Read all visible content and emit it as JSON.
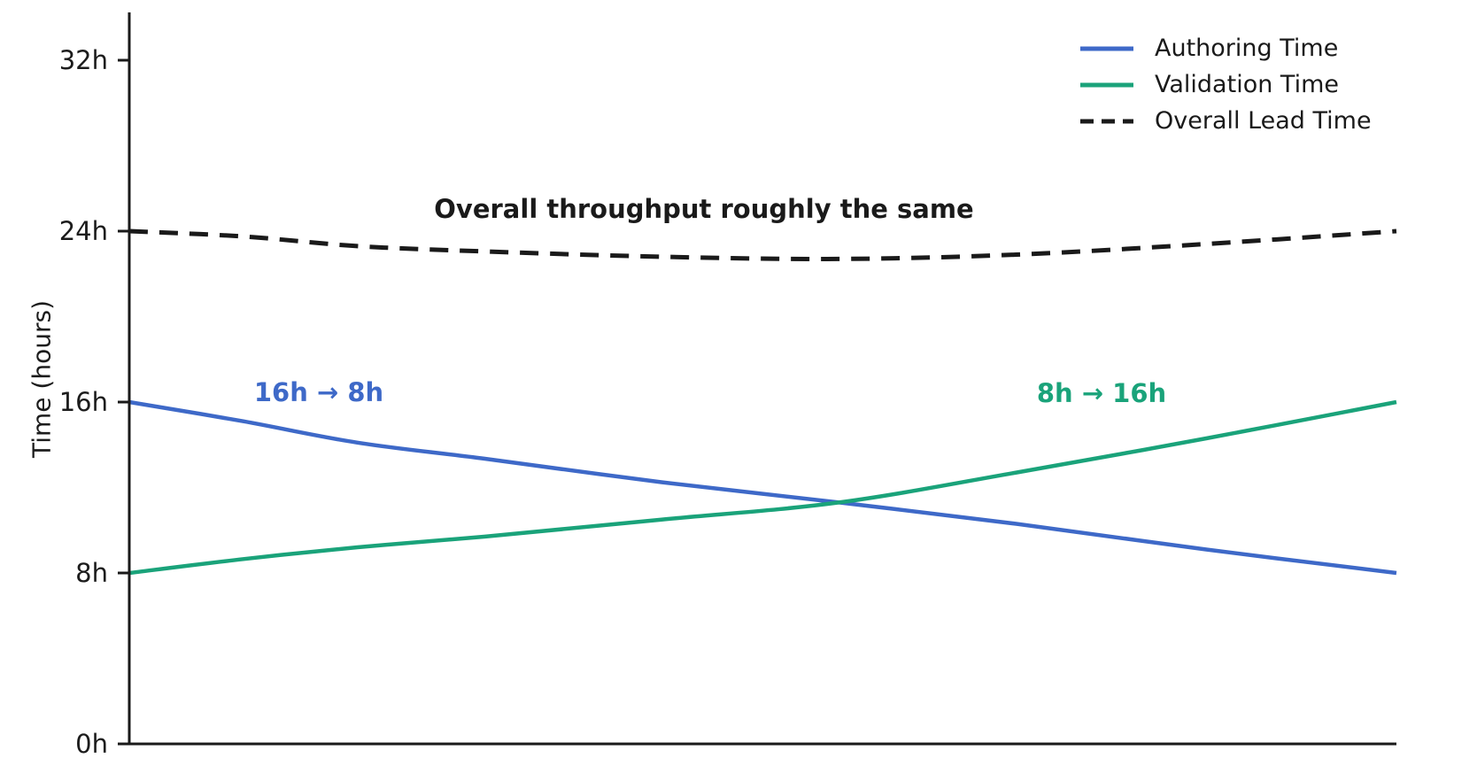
{
  "chart_data": {
    "type": "line",
    "title": "",
    "xlabel": "",
    "ylabel": "Time (hours)",
    "ylim": [
      0,
      34
    ],
    "grid": false,
    "legend_position": "upper right",
    "x_axis_tick_labels": "none",
    "yticks": [
      {
        "value": 0,
        "label": "0h"
      },
      {
        "value": 8,
        "label": "8h"
      },
      {
        "value": 16,
        "label": "16h"
      },
      {
        "value": 24,
        "label": "24h"
      },
      {
        "value": 32,
        "label": "32h"
      }
    ],
    "x": [
      0,
      0.09,
      0.18,
      0.28,
      0.42,
      0.56,
      0.7,
      0.85,
      1
    ],
    "series": [
      {
        "name": "Authoring Time",
        "style": "solid",
        "color": "#3e69c8",
        "values": [
          16,
          15.1,
          14.1,
          13.35,
          12.25,
          11.3,
          10.3,
          9.1,
          8
        ]
      },
      {
        "name": "Validation Time",
        "style": "solid",
        "color": "#1aa37a",
        "values": [
          8,
          8.65,
          9.2,
          9.7,
          10.5,
          11.3,
          12.7,
          14.3,
          16
        ]
      },
      {
        "name": "Overall Lead Time",
        "style": "dashed",
        "color": "#1a1a1a",
        "values": [
          24,
          23.75,
          23.3,
          23.05,
          22.8,
          22.7,
          22.9,
          23.4,
          24
        ]
      }
    ],
    "annotations": [
      {
        "text": "Overall throughput roughly the same",
        "color": "#1a1a1a"
      },
      {
        "text": "16h → 8h",
        "color": "#3e69c8"
      },
      {
        "text": "8h → 16h",
        "color": "#1aa37a"
      }
    ],
    "axis_color": "#1a1a1a"
  }
}
